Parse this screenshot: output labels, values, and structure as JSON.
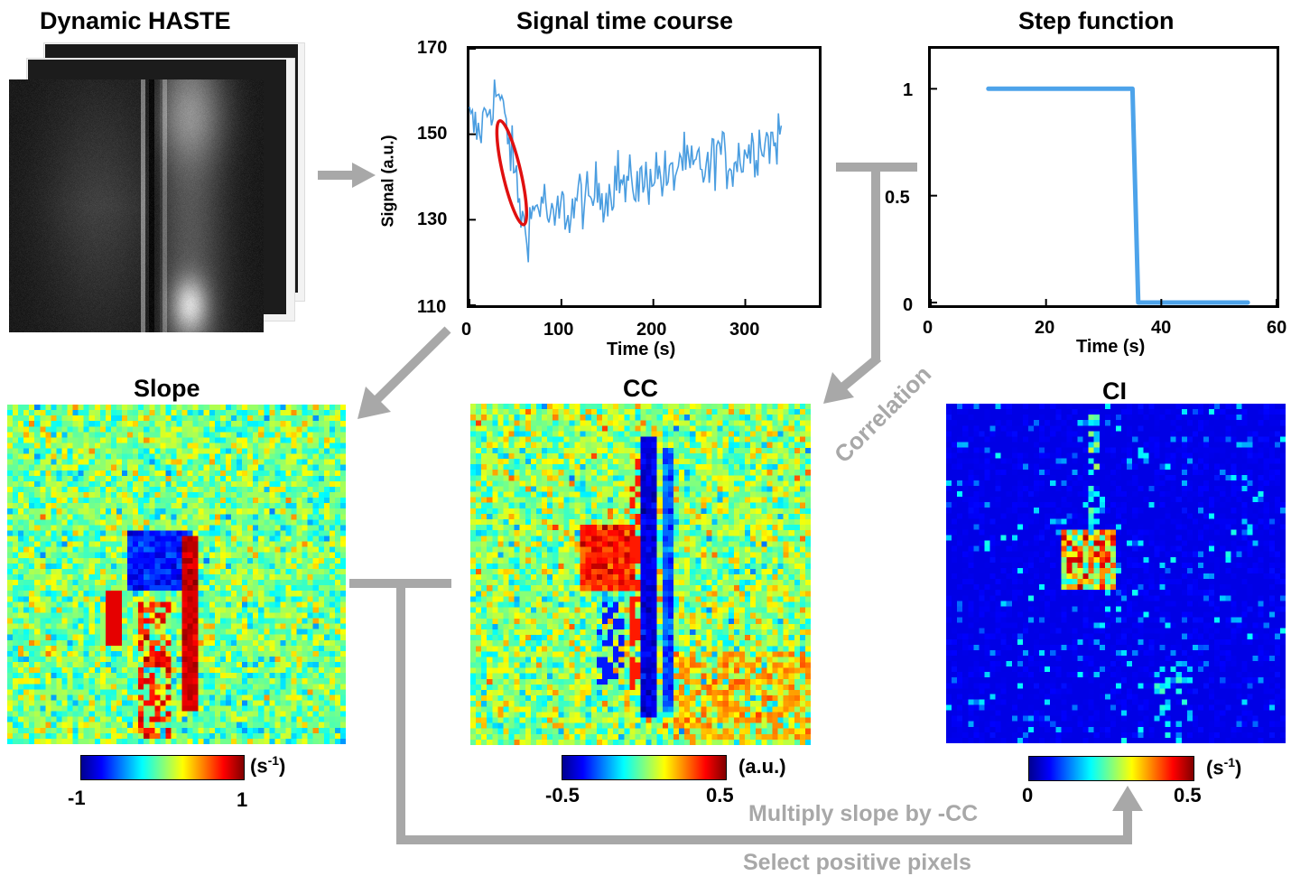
{
  "titles": {
    "haste": "Dynamic HASTE",
    "signal": "Signal time course",
    "step": "Step function",
    "slope": "Slope",
    "cc": "CC",
    "ci": "CI"
  },
  "flow_labels": {
    "correlation": "Correlation",
    "multiply": "Multiply slope by -CC",
    "select": "Select positive pixels"
  },
  "colorbars": {
    "slope": {
      "min": "-1",
      "max": "1",
      "unit": "(s",
      "unit_sup": "-1",
      "unit_close": ")"
    },
    "cc": {
      "min": "-0.5",
      "max": "0.5",
      "unit": "(a.u.)"
    },
    "ci": {
      "min": "0",
      "max": "0.5",
      "unit": "(s",
      "unit_sup": "-1",
      "unit_close": ")"
    }
  },
  "colors": {
    "signal_line": "#4a9de0",
    "step_line": "#4da3ea",
    "highlight_ellipse": "#e01010",
    "flow_arrow": "#a8a8a8"
  },
  "chart_data": [
    {
      "type": "line",
      "title": "Signal time course",
      "xlabel": "Time (s)",
      "ylabel": "Signal (a.u.)",
      "xlim": [
        0,
        380
      ],
      "ylim": [
        110,
        170
      ],
      "xticks": [
        "0",
        "100",
        "200",
        "300"
      ],
      "yticks": [
        "110",
        "130",
        "150",
        "170"
      ],
      "series": [
        {
          "x": [
            0,
            10,
            20,
            30,
            40,
            50,
            60,
            70,
            80,
            90,
            100,
            110,
            120,
            130,
            140,
            150,
            160,
            170,
            180,
            190,
            200,
            210,
            220,
            230,
            240,
            250,
            260,
            270,
            280,
            290,
            300,
            310,
            320,
            330,
            340
          ],
          "values": [
            153,
            150,
            156,
            160,
            152,
            140,
            127,
            132,
            135,
            128,
            133,
            131,
            136,
            133,
            138,
            135,
            141,
            137,
            139,
            138,
            142,
            140,
            139,
            145,
            141,
            143,
            141,
            147,
            143,
            144,
            146,
            147,
            149,
            148,
            150
          ]
        }
      ]
    },
    {
      "type": "line",
      "title": "Step function",
      "xlabel": "Time (s)",
      "ylabel": "",
      "xlim": [
        0,
        60
      ],
      "ylim": [
        0,
        1.2
      ],
      "xticks": [
        "0",
        "20",
        "40",
        "60"
      ],
      "yticks": [
        "0",
        "0.5",
        "1"
      ],
      "series": [
        {
          "x": [
            10,
            35,
            36,
            55
          ],
          "values": [
            1,
            1,
            0,
            0
          ]
        }
      ]
    }
  ]
}
